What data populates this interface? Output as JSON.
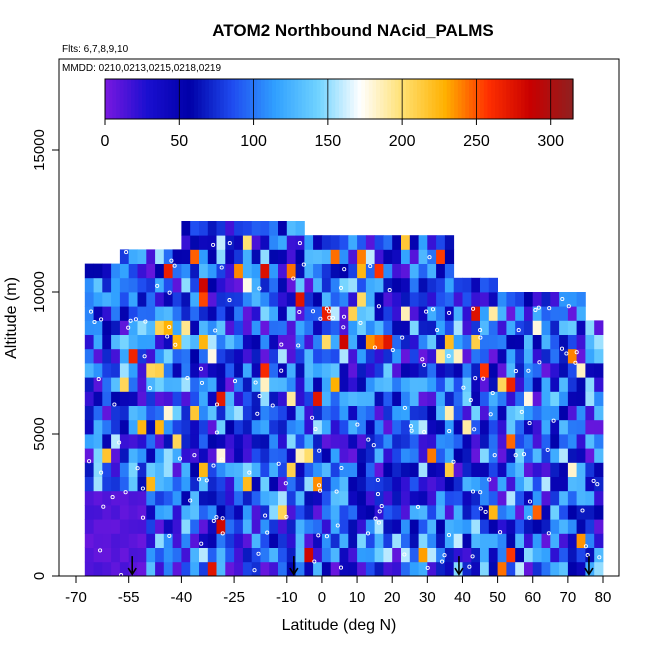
{
  "chart_data": {
    "type": "heatmap",
    "title": "ATOM2 Northbound NAcid_PALMS",
    "flights_label": "Flts: 6,7,8,9,10",
    "dates_label": "MMDD: 0210,0213,0215,0218,0219",
    "xlabel": "Latitude (deg N)",
    "ylabel": "Altitude (m)",
    "xlim": [
      -70,
      85
    ],
    "ylim": [
      0,
      17500
    ],
    "x_ticks": [
      -70,
      -55,
      -40,
      -25,
      -10,
      0,
      10,
      20,
      30,
      40,
      50,
      60,
      70,
      80
    ],
    "x_tick_labels": [
      "-70",
      "-55",
      "-40",
      "-25",
      "-10",
      "0",
      "10",
      "20",
      "30",
      "40",
      "50",
      "60",
      "70",
      "80"
    ],
    "y_ticks": [
      0,
      5000,
      10000,
      15000
    ],
    "y_tick_labels": [
      "0",
      "5000",
      "10000",
      "15000"
    ],
    "colorbar": {
      "range": [
        0,
        315
      ],
      "ticks": [
        0,
        50,
        100,
        150,
        200,
        250,
        300
      ],
      "tick_labels": [
        "0",
        "50",
        "100",
        "150",
        "200",
        "250",
        "300"
      ],
      "colors": [
        "#7a18e0",
        "#1a0fd0",
        "#0000a8",
        "#1f4cf0",
        "#30a0ff",
        "#6fd2ff",
        "#ffffff",
        "#ffe070",
        "#ffb000",
        "#ff3000",
        "#c80000",
        "#902020"
      ]
    },
    "sounding_latitudes": [
      -54,
      -8,
      39,
      76
    ],
    "grid": false
  },
  "colors": {
    "background": "#ffffff",
    "axis": "#000000",
    "markers": "#ffffff"
  }
}
